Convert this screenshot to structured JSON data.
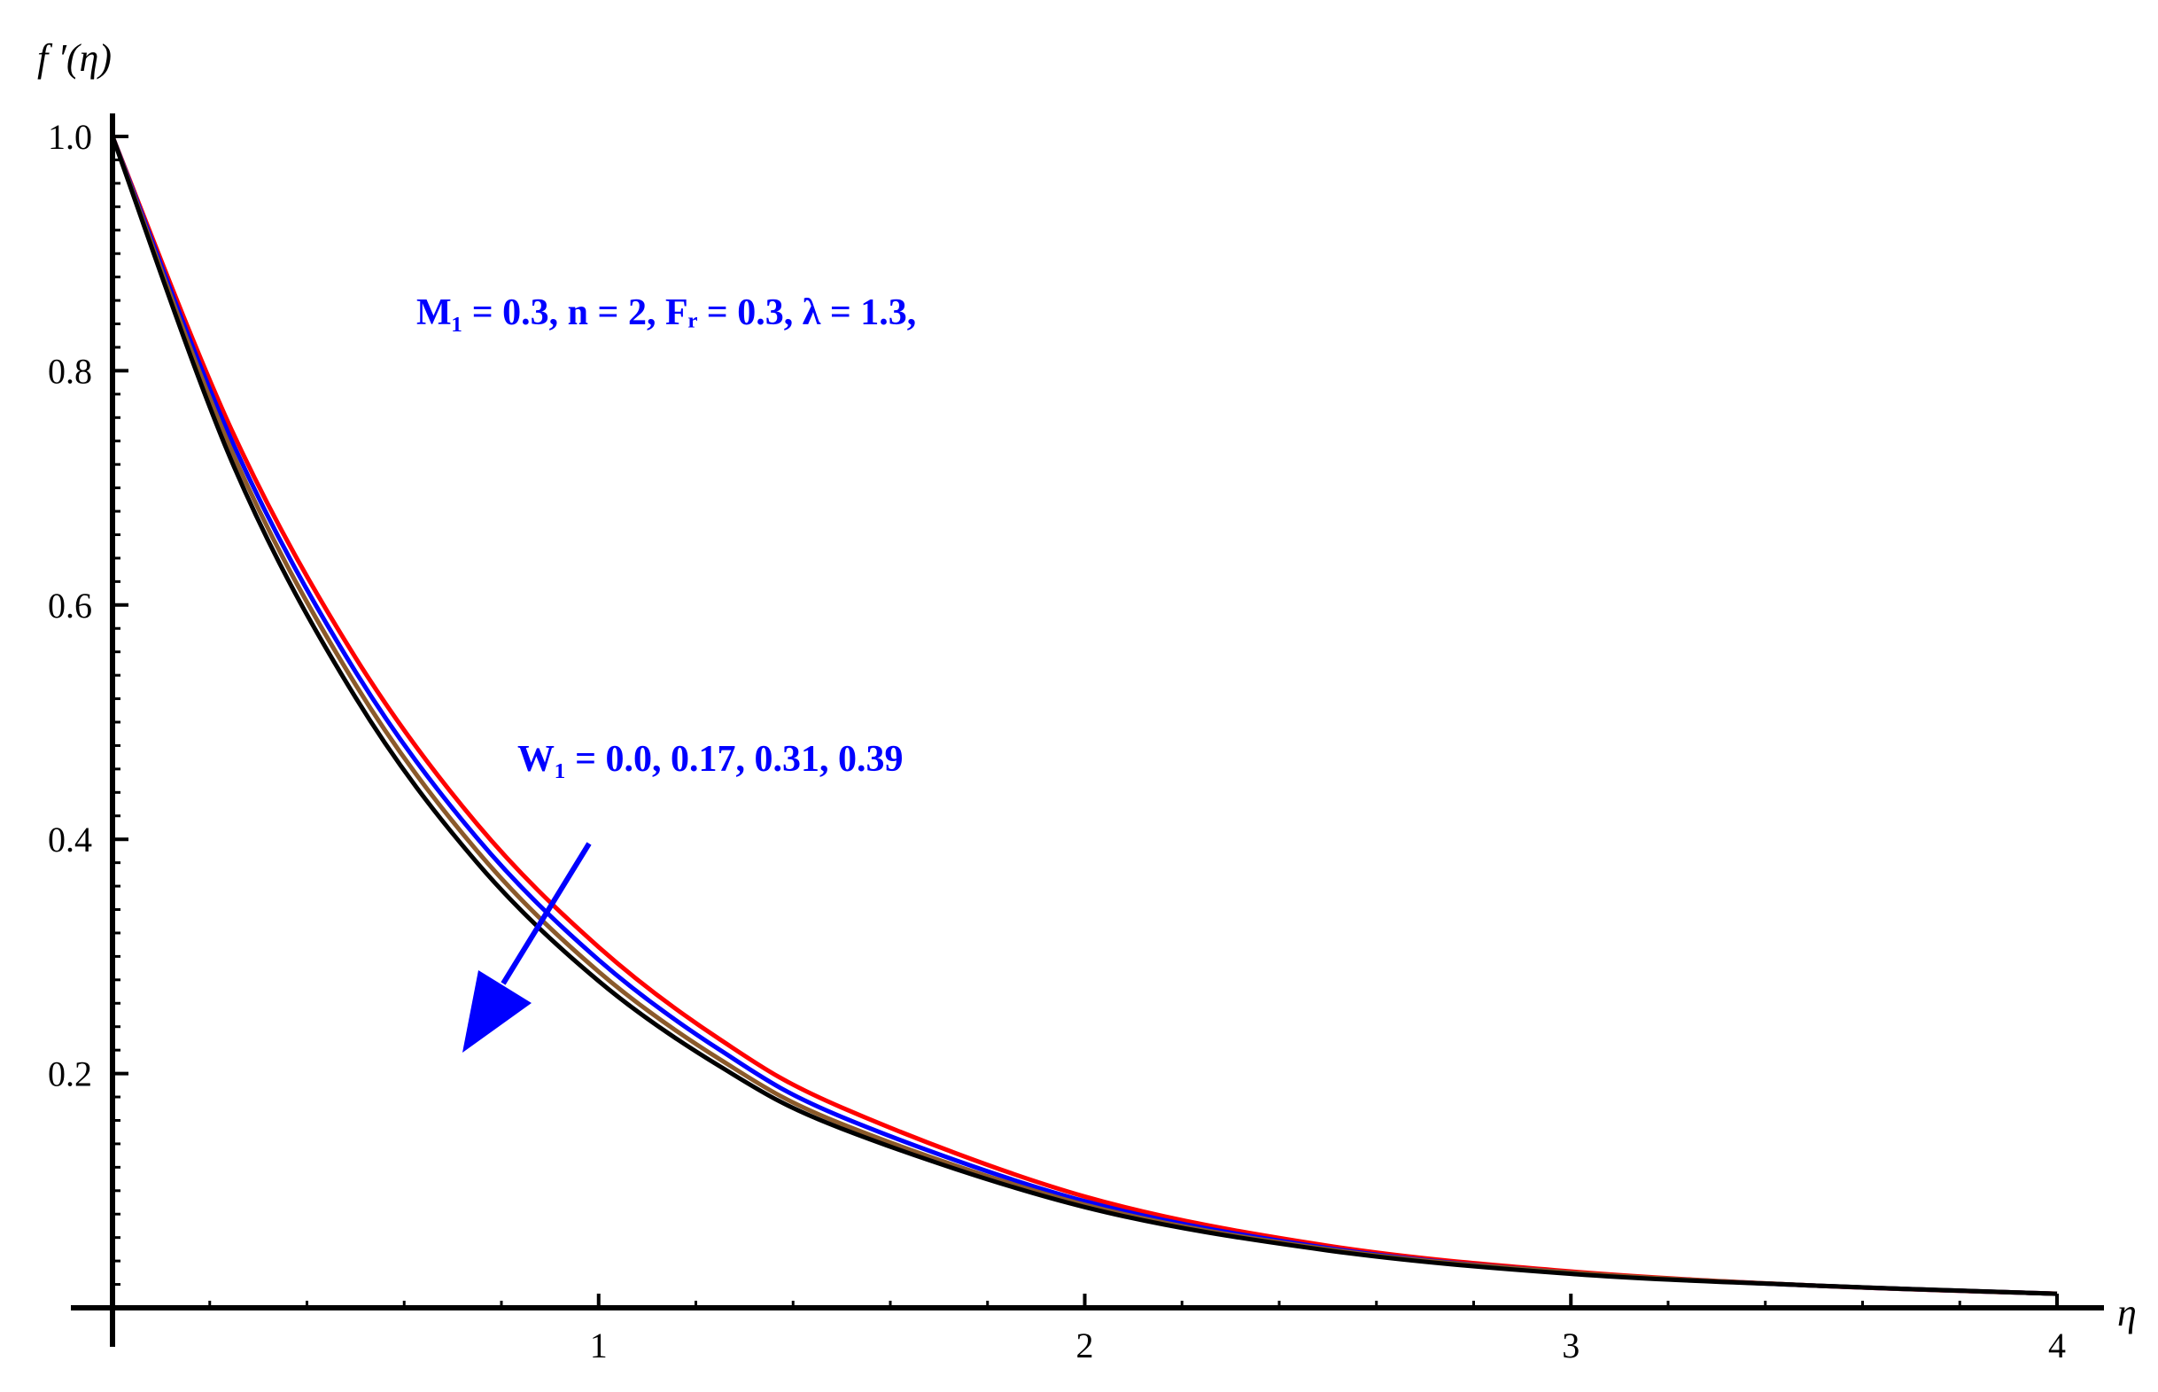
{
  "chart_data": {
    "type": "line",
    "xlabel": "η",
    "ylabel": "f ′(η)",
    "xlim": [
      0,
      4
    ],
    "ylim": [
      0,
      1.03
    ],
    "x_ticks": [
      1,
      2,
      3,
      4
    ],
    "x_tick_labels": [
      "1",
      "2",
      "3",
      "4"
    ],
    "y_ticks": [
      0.2,
      0.4,
      0.6,
      0.8,
      1.0
    ],
    "y_tick_labels": [
      "0.2",
      "0.4",
      "0.6",
      "0.8",
      "1.0"
    ],
    "grid": false,
    "legend": "none",
    "annotations": {
      "params_text": "M₁ =  0.3, n = 2,  Fᵣ =  0.3,  λ = 1.3,",
      "w_text": "W₁ = 0.0, 0.17, 0.31, 0.39"
    },
    "x": [
      0,
      0.25,
      0.5,
      0.75,
      1.0,
      1.25,
      1.5,
      2.0,
      2.5,
      3.0,
      3.5,
      4.0
    ],
    "series": [
      {
        "color": "#ff0000",
        "values": [
          1.0,
          0.745,
          0.555,
          0.413,
          0.308,
          0.229,
          0.171,
          0.095,
          0.053,
          0.031,
          0.019,
          0.012
        ]
      },
      {
        "color": "#0000ff",
        "values": [
          1.0,
          0.736,
          0.543,
          0.401,
          0.297,
          0.22,
          0.163,
          0.091,
          0.051,
          0.03,
          0.019,
          0.012
        ]
      },
      {
        "color": "#8b5a2b",
        "values": [
          1.0,
          0.727,
          0.532,
          0.39,
          0.287,
          0.212,
          0.157,
          0.088,
          0.05,
          0.03,
          0.019,
          0.012
        ]
      },
      {
        "color": "#000000",
        "values": [
          1.0,
          0.718,
          0.521,
          0.38,
          0.279,
          0.206,
          0.153,
          0.086,
          0.049,
          0.029,
          0.019,
          0.012
        ]
      }
    ],
    "arrow_color": "#0000ff"
  }
}
